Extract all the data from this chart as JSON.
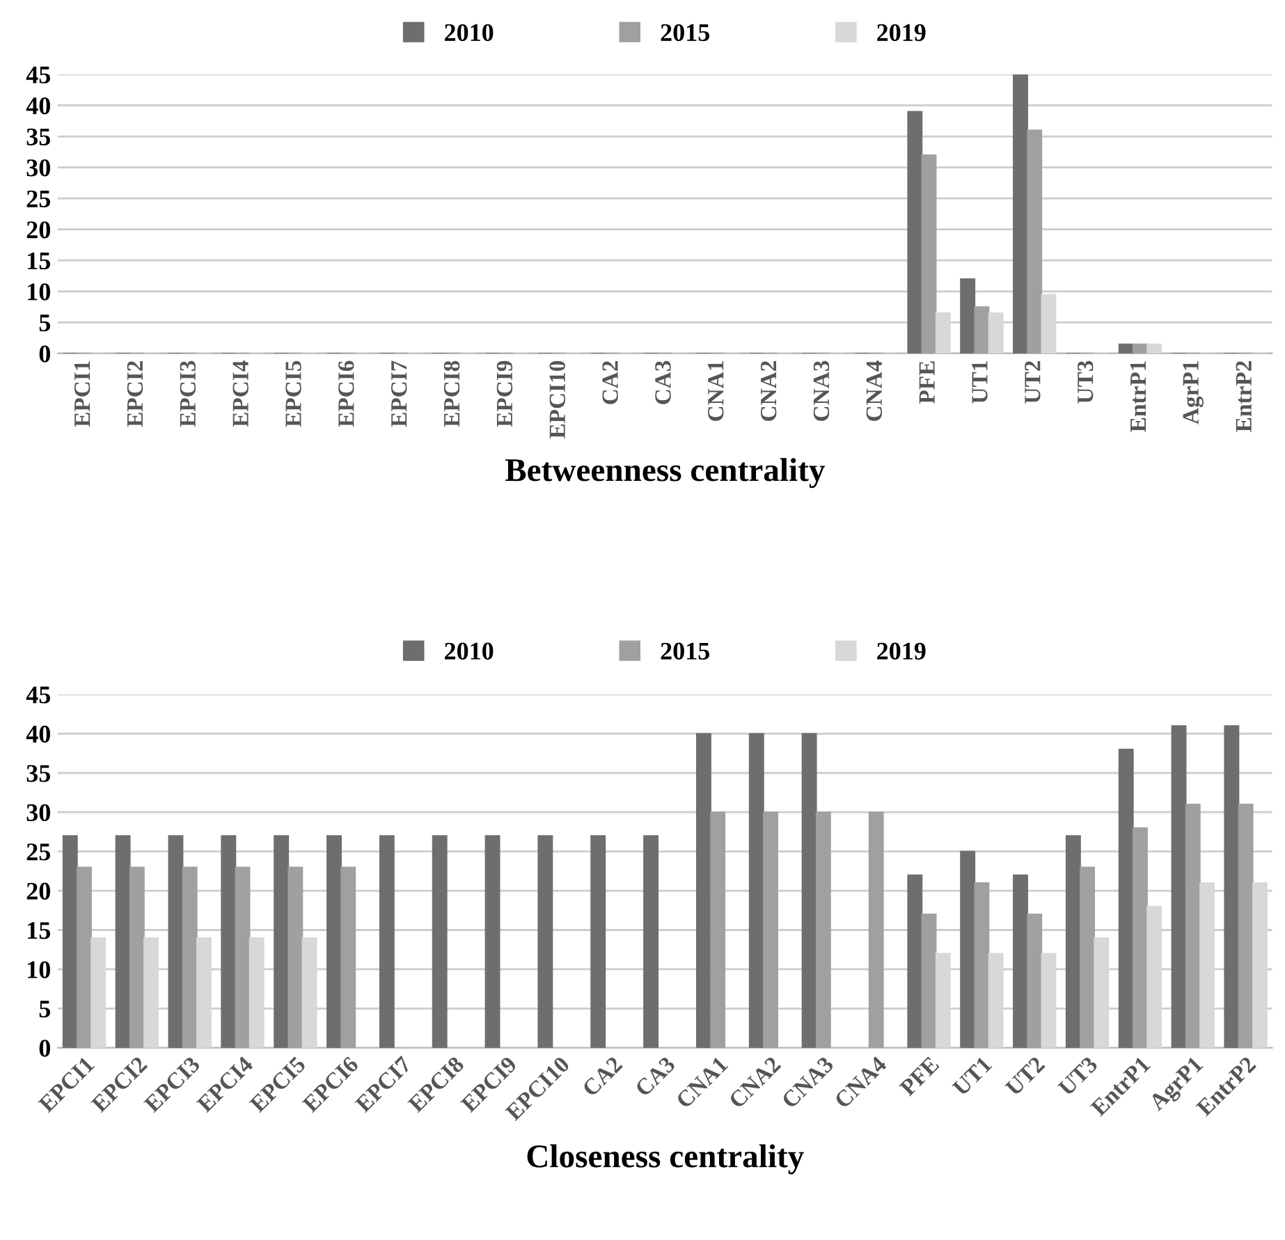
{
  "chart_data": [
    {
      "type": "bar",
      "xlabel": "Betweenness centrality",
      "categories": [
        "EPCI1",
        "EPCI2",
        "EPCI3",
        "EPCI4",
        "EPCI5",
        "EPCI6",
        "EPCI7",
        "EPCI8",
        "EPCI9",
        "EPCI10",
        "CA2",
        "CA3",
        "CNA1",
        "CNA2",
        "CNA3",
        "CNA4",
        "PFE",
        "UT1",
        "UT2",
        "UT3",
        "EntrP1",
        "AgrP1",
        "EntrP2"
      ],
      "series": [
        {
          "name": "2010",
          "color": "#6e6e6e",
          "values": [
            0,
            0,
            0,
            0,
            0,
            0,
            0,
            0,
            0,
            0,
            0,
            0,
            0,
            0,
            0,
            0,
            39,
            12,
            45,
            0,
            1.5,
            0,
            0
          ]
        },
        {
          "name": "2015",
          "color": "#a0a0a0",
          "values": [
            0,
            0,
            0,
            0,
            0,
            0,
            0,
            0,
            0,
            0,
            0,
            0,
            0,
            0,
            0,
            0,
            32,
            7.5,
            36,
            0,
            1.5,
            0,
            0
          ]
        },
        {
          "name": "2019",
          "color": "#d8d8d8",
          "values": [
            0,
            0,
            0,
            0,
            0,
            0,
            0,
            0,
            0,
            0,
            0,
            0,
            0,
            0,
            0,
            0,
            6.5,
            6.5,
            9.5,
            0,
            1.5,
            0,
            0
          ]
        }
      ],
      "ylim": [
        0,
        45
      ],
      "yticks": [
        0,
        5,
        10,
        15,
        20,
        25,
        30,
        35,
        40,
        45
      ],
      "grid": "y",
      "legend": "top"
    },
    {
      "type": "bar",
      "xlabel": "Closeness centrality",
      "categories": [
        "EPCI1",
        "EPCI2",
        "EPCI3",
        "EPCI4",
        "EPCI5",
        "EPCI6",
        "EPCI7",
        "EPCI8",
        "EPCI9",
        "EPCI10",
        "CA2",
        "CA3",
        "CNA1",
        "CNA2",
        "CNA3",
        "CNA4",
        "PFE",
        "UT1",
        "UT2",
        "UT3",
        "EntrP1",
        "AgrP1",
        "EntrP2"
      ],
      "series": [
        {
          "name": "2010",
          "color": "#6e6e6e",
          "values": [
            27,
            27,
            27,
            27,
            27,
            27,
            27,
            27,
            27,
            27,
            27,
            27,
            40,
            40,
            40,
            null,
            22,
            25,
            22,
            27,
            38,
            41,
            41
          ]
        },
        {
          "name": "2015",
          "color": "#a0a0a0",
          "values": [
            23,
            23,
            23,
            23,
            23,
            23,
            null,
            null,
            null,
            null,
            null,
            null,
            30,
            30,
            30,
            30,
            17,
            21,
            17,
            23,
            28,
            31,
            31
          ]
        },
        {
          "name": "2019",
          "color": "#d8d8d8",
          "values": [
            14,
            14,
            14,
            14,
            14,
            null,
            null,
            null,
            null,
            null,
            null,
            null,
            null,
            null,
            null,
            null,
            12,
            12,
            12,
            14,
            18,
            21,
            21
          ]
        }
      ],
      "ylim": [
        0,
        45
      ],
      "yticks": [
        0,
        5,
        10,
        15,
        20,
        25,
        30,
        35,
        40,
        45
      ],
      "grid": "y",
      "legend": "top"
    }
  ]
}
